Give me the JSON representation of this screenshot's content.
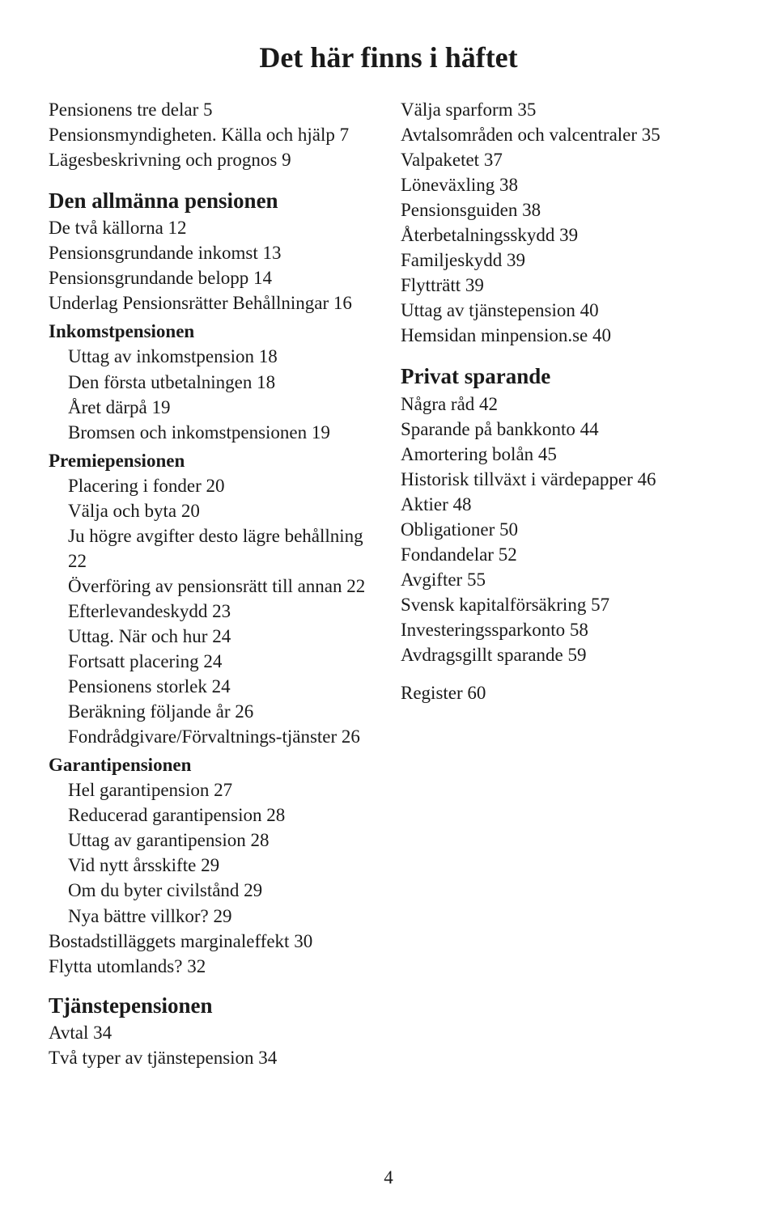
{
  "title": "Det här finns i häftet",
  "pageNumber": "4",
  "left": [
    {
      "t": "Pensionens tre delar  5",
      "cls": "entry"
    },
    {
      "t": "Pensionsmyndigheten. Källa och hjälp  7",
      "cls": "entry"
    },
    {
      "t": "Lägesbeskrivning och prognos  9",
      "cls": "entry"
    },
    {
      "t": "Den allmänna pensionen",
      "cls": "section-heading"
    },
    {
      "t": "De två källorna  12",
      "cls": "entry"
    },
    {
      "t": "Pensionsgrundande inkomst  13",
      "cls": "entry"
    },
    {
      "t": "Pensionsgrundande belopp  14",
      "cls": "entry"
    },
    {
      "t": "Underlag  Pensionsrätter Behållningar  16",
      "cls": "entry"
    },
    {
      "t": "Inkomstpensionen",
      "cls": "bold"
    },
    {
      "t": "Uttag av inkomstpension  18",
      "cls": "entry indent"
    },
    {
      "t": "Den första utbetalningen  18",
      "cls": "entry indent"
    },
    {
      "t": "Året därpå 19",
      "cls": "entry indent"
    },
    {
      "t": "Bromsen och inkomstpensionen 19",
      "cls": "entry indent"
    },
    {
      "t": "Premiepensionen",
      "cls": "bold"
    },
    {
      "t": "Placering i fonder  20",
      "cls": "entry indent"
    },
    {
      "t": "Välja och byta  20",
      "cls": "entry indent"
    },
    {
      "t": "Ju högre avgifter desto lägre behållning  22",
      "cls": "entry indent"
    },
    {
      "t": "Överföring av pensionsrätt till annan  22",
      "cls": "entry indent"
    },
    {
      "t": "Efterlevandeskydd  23",
      "cls": "entry indent"
    },
    {
      "t": "Uttag. När och hur  24",
      "cls": "entry indent"
    },
    {
      "t": "Fortsatt placering  24",
      "cls": "entry indent"
    },
    {
      "t": "Pensionens storlek  24",
      "cls": "entry indent"
    },
    {
      "t": "Beräkning följande år  26",
      "cls": "entry indent"
    },
    {
      "t": "Fondrådgivare/Förvaltnings-tjänster  26",
      "cls": "entry indent"
    },
    {
      "t": "Garantipensionen",
      "cls": "bold"
    },
    {
      "t": "Hel garantipension  27",
      "cls": "entry indent"
    },
    {
      "t": "Reducerad garantipension  28",
      "cls": "entry indent"
    },
    {
      "t": "Uttag av garantipension  28",
      "cls": "entry indent"
    },
    {
      "t": "Vid nytt årsskifte  29",
      "cls": "entry indent"
    },
    {
      "t": "Om du byter civilstånd  29",
      "cls": "entry indent"
    },
    {
      "t": "Nya bättre villkor?  29",
      "cls": "entry indent"
    },
    {
      "t": "Bostadstilläggets marginaleffekt  30",
      "cls": "entry"
    },
    {
      "t": "Flytta utomlands?  32",
      "cls": "entry"
    },
    {
      "t": "Tjänstepensionen",
      "cls": "section-heading small-gap"
    },
    {
      "t": "Avtal  34",
      "cls": "entry"
    },
    {
      "t": "Två typer av tjänstepension  34",
      "cls": "entry"
    }
  ],
  "right": [
    {
      "t": "Välja sparform  35",
      "cls": "entry"
    },
    {
      "t": "Avtalsområden och valcentraler  35",
      "cls": "entry"
    },
    {
      "t": "Valpaketet  37",
      "cls": "entry"
    },
    {
      "t": "Löneväxling  38",
      "cls": "entry"
    },
    {
      "t": "Pensionsguiden  38",
      "cls": "entry"
    },
    {
      "t": "Återbetalningsskydd  39",
      "cls": "entry"
    },
    {
      "t": "Familjeskydd  39",
      "cls": "entry"
    },
    {
      "t": "Flytträtt  39",
      "cls": "entry"
    },
    {
      "t": "Uttag av tjänstepension  40",
      "cls": "entry"
    },
    {
      "t": "Hemsidan minpension.se  40",
      "cls": "entry"
    },
    {
      "t": "Privat sparande",
      "cls": "section-heading"
    },
    {
      "t": "Några råd  42",
      "cls": "entry"
    },
    {
      "t": "Sparande på bankkonto  44",
      "cls": "entry"
    },
    {
      "t": "Amortering bolån  45",
      "cls": "entry"
    },
    {
      "t": "Historisk tillväxt i värdepapper  46",
      "cls": "entry"
    },
    {
      "t": "Aktier  48",
      "cls": "entry"
    },
    {
      "t": "Obligationer  50",
      "cls": "entry"
    },
    {
      "t": "Fondandelar  52",
      "cls": "entry"
    },
    {
      "t": "Avgifter  55",
      "cls": "entry"
    },
    {
      "t": "Svensk kapitalförsäkring  57",
      "cls": "entry"
    },
    {
      "t": "Investeringssparkonto  58",
      "cls": "entry"
    },
    {
      "t": "Avdragsgillt sparande  59",
      "cls": "entry"
    },
    {
      "t": "Register  60",
      "cls": "entry small-gap"
    }
  ]
}
